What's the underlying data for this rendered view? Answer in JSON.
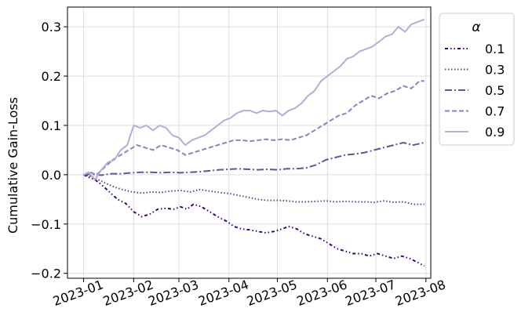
{
  "chart_data": {
    "type": "line",
    "title": "",
    "xlabel": "",
    "ylabel": "Cumulative Gain-Loss",
    "x_ticks": [
      "2023-01",
      "2023-02",
      "2023-03",
      "2023-04",
      "2023-05",
      "2023-06",
      "2023-07",
      "2023-08"
    ],
    "x_range": [
      "2022-12-22",
      "2023-08-04"
    ],
    "ylim": [
      -0.21,
      0.34
    ],
    "y_ticks": [
      -0.2,
      -0.1,
      0.0,
      0.1,
      0.2,
      0.3
    ],
    "y_tick_labels": [
      "−0.2",
      "−0.1",
      "0.0",
      "0.1",
      "0.2",
      "0.3"
    ],
    "grid": true,
    "legend": {
      "title": "α",
      "placement": "outside right"
    },
    "series": [
      {
        "name": "0.1",
        "color": "#3f007d",
        "dash": "densely-dashdotdotted",
        "points": [
          [
            "2023-01-01",
            0.0
          ],
          [
            "2023-01-04",
            -0.005
          ],
          [
            "2023-01-08",
            -0.01
          ],
          [
            "2023-01-12",
            -0.02
          ],
          [
            "2023-01-17",
            -0.035
          ],
          [
            "2023-01-22",
            -0.05
          ],
          [
            "2023-01-27",
            -0.058
          ],
          [
            "2023-02-01",
            -0.075
          ],
          [
            "2023-02-06",
            -0.085
          ],
          [
            "2023-02-11",
            -0.08
          ],
          [
            "2023-02-16",
            -0.07
          ],
          [
            "2023-02-21",
            -0.068
          ],
          [
            "2023-02-26",
            -0.07
          ],
          [
            "2023-03-02",
            -0.065
          ],
          [
            "2023-03-06",
            -0.07
          ],
          [
            "2023-03-10",
            -0.06
          ],
          [
            "2023-03-15",
            -0.065
          ],
          [
            "2023-03-20",
            -0.075
          ],
          [
            "2023-03-25",
            -0.085
          ],
          [
            "2023-03-31",
            -0.095
          ],
          [
            "2023-04-04",
            -0.105
          ],
          [
            "2023-04-09",
            -0.11
          ],
          [
            "2023-04-14",
            -0.112
          ],
          [
            "2023-04-19",
            -0.115
          ],
          [
            "2023-04-24",
            -0.118
          ],
          [
            "2023-04-29",
            -0.115
          ],
          [
            "2023-05-04",
            -0.11
          ],
          [
            "2023-05-08",
            -0.105
          ],
          [
            "2023-05-13",
            -0.11
          ],
          [
            "2023-05-18",
            -0.12
          ],
          [
            "2023-05-23",
            -0.125
          ],
          [
            "2023-05-28",
            -0.13
          ],
          [
            "2023-06-02",
            -0.14
          ],
          [
            "2023-06-07",
            -0.15
          ],
          [
            "2023-06-12",
            -0.155
          ],
          [
            "2023-06-17",
            -0.16
          ],
          [
            "2023-06-22",
            -0.16
          ],
          [
            "2023-06-27",
            -0.165
          ],
          [
            "2023-07-02",
            -0.16
          ],
          [
            "2023-07-07",
            -0.165
          ],
          [
            "2023-07-12",
            -0.17
          ],
          [
            "2023-07-17",
            -0.165
          ],
          [
            "2023-07-22",
            -0.17
          ],
          [
            "2023-07-27",
            -0.178
          ],
          [
            "2023-07-31",
            -0.185
          ]
        ]
      },
      {
        "name": "0.3",
        "color": "#6a3d9a",
        "dash": "dotted",
        "points": [
          [
            "2023-01-01",
            0.0
          ],
          [
            "2023-01-05",
            -0.003
          ],
          [
            "2023-01-10",
            -0.01
          ],
          [
            "2023-01-15",
            -0.018
          ],
          [
            "2023-01-20",
            -0.025
          ],
          [
            "2023-01-25",
            -0.03
          ],
          [
            "2023-01-31",
            -0.035
          ],
          [
            "2023-02-06",
            -0.037
          ],
          [
            "2023-02-12",
            -0.035
          ],
          [
            "2023-02-18",
            -0.036
          ],
          [
            "2023-02-24",
            -0.033
          ],
          [
            "2023-03-02",
            -0.032
          ],
          [
            "2023-03-08",
            -0.035
          ],
          [
            "2023-03-14",
            -0.03
          ],
          [
            "2023-03-20",
            -0.033
          ],
          [
            "2023-03-26",
            -0.036
          ],
          [
            "2023-04-01",
            -0.038
          ],
          [
            "2023-04-07",
            -0.042
          ],
          [
            "2023-04-13",
            -0.046
          ],
          [
            "2023-04-19",
            -0.05
          ],
          [
            "2023-04-25",
            -0.052
          ],
          [
            "2023-05-01",
            -0.052
          ],
          [
            "2023-05-07",
            -0.053
          ],
          [
            "2023-05-13",
            -0.055
          ],
          [
            "2023-05-19",
            -0.055
          ],
          [
            "2023-05-25",
            -0.054
          ],
          [
            "2023-05-31",
            -0.053
          ],
          [
            "2023-06-06",
            -0.055
          ],
          [
            "2023-06-12",
            -0.054
          ],
          [
            "2023-06-18",
            -0.055
          ],
          [
            "2023-06-24",
            -0.055
          ],
          [
            "2023-06-30",
            -0.056
          ],
          [
            "2023-07-06",
            -0.053
          ],
          [
            "2023-07-12",
            -0.056
          ],
          [
            "2023-07-18",
            -0.055
          ],
          [
            "2023-07-24",
            -0.06
          ],
          [
            "2023-07-31",
            -0.06
          ]
        ]
      },
      {
        "name": "0.5",
        "color": "#6750a4",
        "dash": "dashdot",
        "points": [
          [
            "2023-01-01",
            0.0
          ],
          [
            "2023-01-06",
            0.001
          ],
          [
            "2023-01-12",
            -0.001
          ],
          [
            "2023-01-18",
            0.002
          ],
          [
            "2023-01-24",
            0.002
          ],
          [
            "2023-01-31",
            0.004
          ],
          [
            "2023-02-06",
            0.005
          ],
          [
            "2023-02-12",
            0.005
          ],
          [
            "2023-02-18",
            0.004
          ],
          [
            "2023-02-24",
            0.005
          ],
          [
            "2023-03-02",
            0.004
          ],
          [
            "2023-03-08",
            0.005
          ],
          [
            "2023-03-14",
            0.006
          ],
          [
            "2023-03-20",
            0.008
          ],
          [
            "2023-03-26",
            0.01
          ],
          [
            "2023-04-01",
            0.011
          ],
          [
            "2023-04-07",
            0.012
          ],
          [
            "2023-04-13",
            0.011
          ],
          [
            "2023-04-19",
            0.01
          ],
          [
            "2023-04-25",
            0.011
          ],
          [
            "2023-05-01",
            0.01
          ],
          [
            "2023-05-07",
            0.012
          ],
          [
            "2023-05-13",
            0.012
          ],
          [
            "2023-05-19",
            0.014
          ],
          [
            "2023-05-25",
            0.02
          ],
          [
            "2023-05-31",
            0.03
          ],
          [
            "2023-06-06",
            0.035
          ],
          [
            "2023-06-12",
            0.04
          ],
          [
            "2023-06-18",
            0.042
          ],
          [
            "2023-06-24",
            0.045
          ],
          [
            "2023-06-30",
            0.05
          ],
          [
            "2023-07-06",
            0.055
          ],
          [
            "2023-07-12",
            0.06
          ],
          [
            "2023-07-18",
            0.065
          ],
          [
            "2023-07-24",
            0.06
          ],
          [
            "2023-07-31",
            0.065
          ]
        ]
      },
      {
        "name": "0.7",
        "color": "#8c82c0",
        "dash": "dashed",
        "points": [
          [
            "2023-01-01",
            0.0
          ],
          [
            "2023-01-05",
            0.005
          ],
          [
            "2023-01-09",
            0.0
          ],
          [
            "2023-01-14",
            0.015
          ],
          [
            "2023-01-19",
            0.03
          ],
          [
            "2023-01-24",
            0.04
          ],
          [
            "2023-01-29",
            0.05
          ],
          [
            "2023-02-03",
            0.06
          ],
          [
            "2023-02-08",
            0.055
          ],
          [
            "2023-02-13",
            0.05
          ],
          [
            "2023-02-18",
            0.06
          ],
          [
            "2023-02-23",
            0.055
          ],
          [
            "2023-02-28",
            0.05
          ],
          [
            "2023-03-05",
            0.04
          ],
          [
            "2023-03-10",
            0.045
          ],
          [
            "2023-03-15",
            0.05
          ],
          [
            "2023-03-20",
            0.055
          ],
          [
            "2023-03-25",
            0.06
          ],
          [
            "2023-03-30",
            0.065
          ],
          [
            "2023-04-04",
            0.07
          ],
          [
            "2023-04-09",
            0.07
          ],
          [
            "2023-04-14",
            0.068
          ],
          [
            "2023-04-19",
            0.07
          ],
          [
            "2023-04-24",
            0.072
          ],
          [
            "2023-04-29",
            0.07
          ],
          [
            "2023-05-04",
            0.072
          ],
          [
            "2023-05-09",
            0.07
          ],
          [
            "2023-05-14",
            0.075
          ],
          [
            "2023-05-19",
            0.08
          ],
          [
            "2023-05-24",
            0.09
          ],
          [
            "2023-05-29",
            0.1
          ],
          [
            "2023-06-03",
            0.11
          ],
          [
            "2023-06-08",
            0.12
          ],
          [
            "2023-06-13",
            0.125
          ],
          [
            "2023-06-18",
            0.14
          ],
          [
            "2023-06-23",
            0.15
          ],
          [
            "2023-06-28",
            0.16
          ],
          [
            "2023-07-03",
            0.155
          ],
          [
            "2023-07-08",
            0.165
          ],
          [
            "2023-07-13",
            0.17
          ],
          [
            "2023-07-18",
            0.18
          ],
          [
            "2023-07-23",
            0.175
          ],
          [
            "2023-07-28",
            0.19
          ],
          [
            "2023-07-31",
            0.19
          ]
        ]
      },
      {
        "name": "0.9",
        "color": "#b3aed8",
        "dash": "solid",
        "points": [
          [
            "2023-01-01",
            0.0
          ],
          [
            "2023-01-04",
            0.005
          ],
          [
            "2023-01-08",
            -0.01
          ],
          [
            "2023-01-12",
            0.01
          ],
          [
            "2023-01-16",
            0.025
          ],
          [
            "2023-01-20",
            0.03
          ],
          [
            "2023-01-24",
            0.05
          ],
          [
            "2023-01-28",
            0.06
          ],
          [
            "2023-02-01",
            0.1
          ],
          [
            "2023-02-05",
            0.095
          ],
          [
            "2023-02-09",
            0.1
          ],
          [
            "2023-02-13",
            0.09
          ],
          [
            "2023-02-17",
            0.1
          ],
          [
            "2023-02-21",
            0.095
          ],
          [
            "2023-02-25",
            0.08
          ],
          [
            "2023-03-01",
            0.075
          ],
          [
            "2023-03-05",
            0.06
          ],
          [
            "2023-03-09",
            0.07
          ],
          [
            "2023-03-13",
            0.075
          ],
          [
            "2023-03-17",
            0.08
          ],
          [
            "2023-03-21",
            0.09
          ],
          [
            "2023-03-25",
            0.1
          ],
          [
            "2023-03-29",
            0.11
          ],
          [
            "2023-04-02",
            0.115
          ],
          [
            "2023-04-06",
            0.125
          ],
          [
            "2023-04-10",
            0.13
          ],
          [
            "2023-04-14",
            0.13
          ],
          [
            "2023-04-18",
            0.125
          ],
          [
            "2023-04-22",
            0.13
          ],
          [
            "2023-04-26",
            0.128
          ],
          [
            "2023-04-30",
            0.13
          ],
          [
            "2023-05-04",
            0.12
          ],
          [
            "2023-05-08",
            0.13
          ],
          [
            "2023-05-12",
            0.135
          ],
          [
            "2023-05-16",
            0.145
          ],
          [
            "2023-05-20",
            0.16
          ],
          [
            "2023-05-24",
            0.17
          ],
          [
            "2023-05-28",
            0.19
          ],
          [
            "2023-06-01",
            0.2
          ],
          [
            "2023-06-05",
            0.21
          ],
          [
            "2023-06-09",
            0.22
          ],
          [
            "2023-06-13",
            0.235
          ],
          [
            "2023-06-17",
            0.24
          ],
          [
            "2023-06-21",
            0.25
          ],
          [
            "2023-06-25",
            0.255
          ],
          [
            "2023-06-29",
            0.26
          ],
          [
            "2023-07-03",
            0.27
          ],
          [
            "2023-07-07",
            0.28
          ],
          [
            "2023-07-11",
            0.285
          ],
          [
            "2023-07-15",
            0.3
          ],
          [
            "2023-07-19",
            0.29
          ],
          [
            "2023-07-23",
            0.305
          ],
          [
            "2023-07-27",
            0.31
          ],
          [
            "2023-07-31",
            0.315
          ]
        ]
      }
    ]
  }
}
